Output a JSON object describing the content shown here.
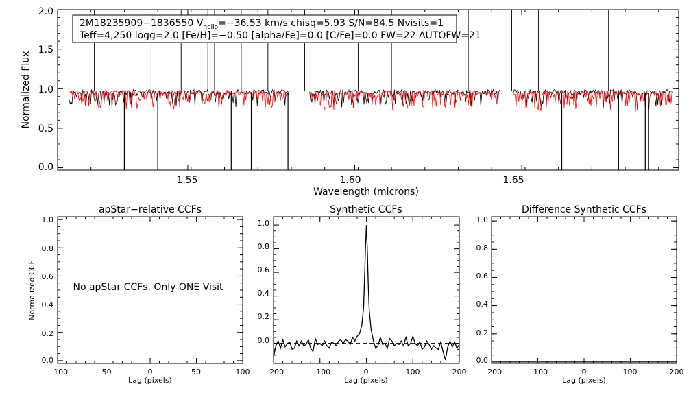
{
  "chart_data": [
    {
      "type": "line",
      "xlabel": "Wavelength (microns)",
      "ylabel": "Normalized Flux",
      "xlim": [
        1.511,
        1.697
      ],
      "ylim": [
        -0.03,
        2.0
      ],
      "xticks": [
        1.55,
        1.6,
        1.65
      ],
      "xtick_labels": [
        "1.55",
        "1.60",
        "1.65"
      ],
      "yticks": [
        0.0,
        0.5,
        1.0,
        1.5,
        2.0
      ],
      "ytick_labels": [
        "0.0",
        "0.5",
        "1.0",
        "1.5",
        "2.0"
      ],
      "chip_ranges": [
        [
          1.5145,
          1.5805
        ],
        [
          1.5865,
          1.6435
        ],
        [
          1.6475,
          1.6955
        ]
      ],
      "series": [
        {
          "color": "#000000",
          "style": "observed spectrum, continuum near 0.95-1.0 with absorption lines and spikes"
        },
        {
          "color": "#ff0000",
          "style": "synthetic spectrum, continuum near 0.95"
        }
      ],
      "spikes_up": [
        1.522,
        1.539,
        1.548,
        1.556,
        1.558,
        1.566,
        1.574,
        1.585,
        1.601,
        1.611,
        1.634,
        1.647,
        1.655,
        1.676
      ],
      "spikes_down": [
        1.531,
        1.541,
        1.563,
        1.569,
        1.58,
        1.662,
        1.679,
        1.687,
        1.688
      ],
      "annotation": {
        "line1_prefix": "2M18235909−1836550  V",
        "line1_sub": "helio",
        "line1_suffix": "=−36.53 km/s  chisq=5.93  S/N=84.5  Nvisits=1",
        "line2": "Teff=4,250 logg=2.0 [Fe/H]=−0.50 [alpha/Fe]=0.0 [C/Fe]=0.0 FW=22 AUTOFW=21"
      }
    },
    {
      "type": "line",
      "title": "apStar−relative CCFs",
      "xlabel": "Lag (pixels)",
      "ylabel": "Normalized CCF",
      "xlim": [
        -100,
        100
      ],
      "ylim": [
        -0.02,
        1.02
      ],
      "xticks": [
        -100,
        -50,
        0,
        50,
        100
      ],
      "xtick_labels": [
        "−100",
        "−50",
        "0",
        "50",
        "100"
      ],
      "yticks": [
        0.0,
        0.2,
        0.4,
        0.6,
        0.8,
        1.0
      ],
      "ytick_labels": [
        "0.0",
        "0.2",
        "0.4",
        "0.6",
        "0.8",
        "1.0"
      ],
      "message": "No apStar CCFs.  Only ONE Visit",
      "series": []
    },
    {
      "type": "line",
      "title": "Synthetic CCFs",
      "xlabel": "Lag (pixels)",
      "xlim": [
        -200,
        200
      ],
      "ylim": [
        -0.17,
        1.07
      ],
      "xticks": [
        -200,
        -100,
        0,
        100,
        200
      ],
      "xtick_labels": [
        "−200",
        "−100",
        "0",
        "100",
        "200"
      ],
      "yticks": [
        0.0,
        0.2,
        0.4,
        0.6,
        0.8,
        1.0
      ],
      "ytick_labels": [
        "0.0",
        "0.2",
        "0.4",
        "0.6",
        "0.8",
        "1.0"
      ],
      "baseline": 0.0,
      "series": [
        {
          "color": "#000000",
          "x": [
            -200,
            -195,
            -190,
            -185,
            -180,
            -175,
            -170,
            -165,
            -160,
            -155,
            -150,
            -145,
            -140,
            -135,
            -130,
            -125,
            -120,
            -115,
            -110,
            -105,
            -100,
            -95,
            -90,
            -85,
            -80,
            -75,
            -70,
            -65,
            -60,
            -55,
            -50,
            -45,
            -40,
            -35,
            -30,
            -25,
            -20,
            -15,
            -10,
            -6,
            -4,
            -2,
            0,
            2,
            4,
            6,
            10,
            15,
            20,
            25,
            30,
            35,
            40,
            45,
            50,
            55,
            60,
            65,
            70,
            75,
            80,
            85,
            90,
            95,
            100,
            105,
            110,
            115,
            120,
            125,
            130,
            135,
            140,
            145,
            150,
            155,
            160,
            165,
            170,
            175,
            180,
            185,
            190,
            195,
            200
          ],
          "y": [
            -0.12,
            -0.02,
            0.02,
            -0.04,
            0.03,
            -0.03,
            0.0,
            0.01,
            -0.05,
            -0.04,
            0.02,
            -0.02,
            0.02,
            -0.02,
            -0.01,
            0.03,
            -0.04,
            -0.07,
            0.04,
            -0.01,
            0.0,
            -0.02,
            0.02,
            -0.02,
            -0.04,
            0.01,
            0.0,
            -0.02,
            0.02,
            0.03,
            0.0,
            0.03,
            0.02,
            -0.01,
            0.05,
            0.02,
            0.06,
            0.08,
            0.15,
            0.3,
            0.55,
            0.8,
            1.0,
            0.78,
            0.5,
            0.28,
            0.12,
            0.02,
            -0.04,
            -0.02,
            0.05,
            -0.01,
            0.0,
            -0.04,
            0.04,
            0.02,
            -0.02,
            0.0,
            -0.01,
            0.02,
            -0.02,
            0.05,
            -0.02,
            0.0,
            0.06,
            0.0,
            -0.02,
            0.01,
            -0.05,
            -0.03,
            0.02,
            -0.01,
            -0.05,
            -0.02,
            -0.04,
            -0.05,
            0.01,
            -0.07,
            -0.14,
            -0.03,
            0.02,
            -0.03,
            0.01,
            -0.04,
            -0.01
          ]
        }
      ]
    },
    {
      "type": "line",
      "title": "Difference Synthetic CCFs",
      "xlabel": "Lag (pixels)",
      "xlim": [
        -200,
        200
      ],
      "ylim": [
        -0.01,
        1.03
      ],
      "xticks": [
        -200,
        -100,
        0,
        100,
        200
      ],
      "xtick_labels": [
        "−200",
        "−100",
        "0",
        "100",
        "200"
      ],
      "yticks": [
        0.0,
        0.2,
        0.4,
        0.6,
        0.8,
        1.0
      ],
      "ytick_labels": [
        "0.0",
        "0.2",
        "0.4",
        "0.6",
        "0.8",
        "1.0"
      ],
      "baseline": 0.0,
      "series": [
        {
          "color": "#000000",
          "x": [
            -200,
            200
          ],
          "y": [
            0.0,
            0.0
          ]
        }
      ]
    }
  ]
}
